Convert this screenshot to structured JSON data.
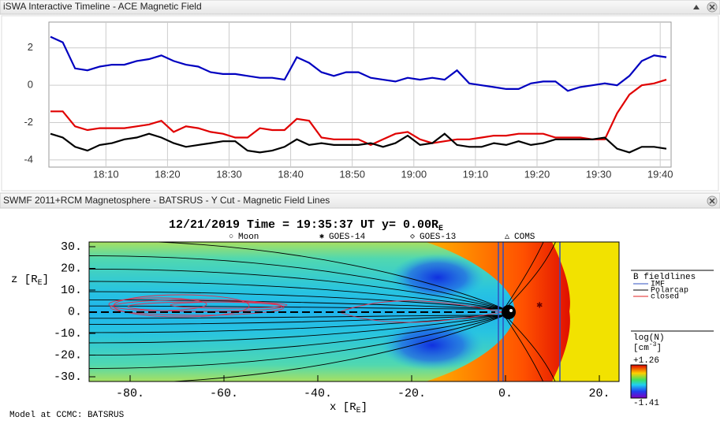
{
  "top_panel": {
    "title": "iSWA Interactive Timeline - ACE Magnetic Field"
  },
  "chart_data": {
    "type": "line",
    "x": [
      "18:01",
      "18:03",
      "18:05",
      "18:07",
      "18:09",
      "18:11",
      "18:13",
      "18:15",
      "18:17",
      "18:19",
      "18:21",
      "18:23",
      "18:25",
      "18:27",
      "18:29",
      "18:31",
      "18:33",
      "18:35",
      "18:37",
      "18:39",
      "18:41",
      "18:43",
      "18:45",
      "18:47",
      "18:49",
      "18:51",
      "18:53",
      "18:55",
      "18:57",
      "18:59",
      "19:01",
      "19:03",
      "19:05",
      "19:07",
      "19:09",
      "19:11",
      "19:13",
      "19:15",
      "19:17",
      "19:19",
      "19:21",
      "19:23",
      "19:25",
      "19:27",
      "19:29",
      "19:31",
      "19:33",
      "19:35",
      "19:37",
      "19:39",
      "19:41"
    ],
    "series": [
      {
        "color": "#0000c0",
        "values": [
          2.6,
          2.3,
          0.9,
          0.8,
          1.0,
          1.1,
          1.1,
          1.3,
          1.4,
          1.6,
          1.3,
          1.1,
          1.0,
          0.7,
          0.6,
          0.6,
          0.5,
          0.4,
          0.4,
          0.3,
          1.5,
          1.2,
          0.7,
          0.5,
          0.7,
          0.7,
          0.4,
          0.3,
          0.2,
          0.4,
          0.3,
          0.4,
          0.3,
          0.8,
          0.1,
          0.0,
          -0.1,
          -0.2,
          -0.2,
          0.1,
          0.2,
          0.2,
          -0.3,
          -0.1,
          0.0,
          0.1,
          0.0,
          0.5,
          1.3,
          1.6,
          1.5
        ]
      },
      {
        "color": "#e00000",
        "values": [
          -1.4,
          -1.4,
          -2.2,
          -2.4,
          -2.3,
          -2.3,
          -2.3,
          -2.2,
          -2.1,
          -1.9,
          -2.5,
          -2.2,
          -2.3,
          -2.5,
          -2.6,
          -2.8,
          -2.8,
          -2.3,
          -2.4,
          -2.4,
          -1.8,
          -1.9,
          -2.8,
          -2.9,
          -2.9,
          -2.9,
          -3.2,
          -2.9,
          -2.6,
          -2.5,
          -2.9,
          -3.1,
          -3.0,
          -2.9,
          -2.9,
          -2.8,
          -2.7,
          -2.7,
          -2.6,
          -2.6,
          -2.6,
          -2.8,
          -2.8,
          -2.8,
          -2.9,
          -2.9,
          -1.5,
          -0.5,
          0.0,
          0.1,
          0.3
        ]
      },
      {
        "color": "#000000",
        "values": [
          -2.6,
          -2.8,
          -3.3,
          -3.5,
          -3.2,
          -3.1,
          -2.9,
          -2.8,
          -2.6,
          -2.8,
          -3.1,
          -3.3,
          -3.2,
          -3.1,
          -3.0,
          -3.0,
          -3.5,
          -3.6,
          -3.5,
          -3.3,
          -2.9,
          -3.2,
          -3.1,
          -3.2,
          -3.2,
          -3.2,
          -3.1,
          -3.3,
          -3.1,
          -2.7,
          -3.2,
          -3.1,
          -2.6,
          -3.2,
          -3.3,
          -3.3,
          -3.1,
          -3.2,
          -3.0,
          -3.2,
          -3.1,
          -2.9,
          -2.9,
          -2.9,
          -2.9,
          -2.8,
          -3.4,
          -3.6,
          -3.3,
          -3.3,
          -3.4
        ]
      }
    ],
    "xlim": [
      "18:01",
      "19:41"
    ],
    "xticks": [
      "18:10",
      "18:20",
      "18:30",
      "18:40",
      "18:50",
      "19:00",
      "19:10",
      "19:20",
      "19:30",
      "19:40"
    ],
    "ylim": [
      -4.3,
      3.3
    ],
    "yticks": [
      -4,
      -2,
      0,
      2
    ],
    "grid": true
  },
  "bottom_panel": {
    "title": "SWMF 2011+RCM Magnetosphere - BATSRUS - Y Cut - Magnetic Field Lines",
    "plot": {
      "heading": [
        "12/21/2019 Time = 19:35:37 UT y= 0.00R",
        "E"
      ],
      "markers": [
        "Moon",
        "GOES-14",
        "GOES-13",
        "COMS"
      ],
      "z_label": [
        "z [R",
        "E",
        "]"
      ],
      "x_label": [
        "x [R",
        "E",
        "]"
      ],
      "z_ticks": [
        "30.",
        "20.",
        "10.",
        "0.",
        "-10.",
        "-20.",
        "-30."
      ],
      "x_ticks": [
        "-80.",
        "-60.",
        "-40.",
        "-20.",
        "0.",
        "20."
      ],
      "legend_title": "B fieldlines",
      "legend": [
        "IMF",
        "Polarcap",
        "closed"
      ],
      "colorbar_title": "log(N)",
      "colorbar_unit": [
        "[cm",
        "-3",
        "]"
      ],
      "colorbar_max": "+1.26",
      "colorbar_min": "-1.41",
      "footer": "Model at CCMC: BATSRUS"
    }
  }
}
